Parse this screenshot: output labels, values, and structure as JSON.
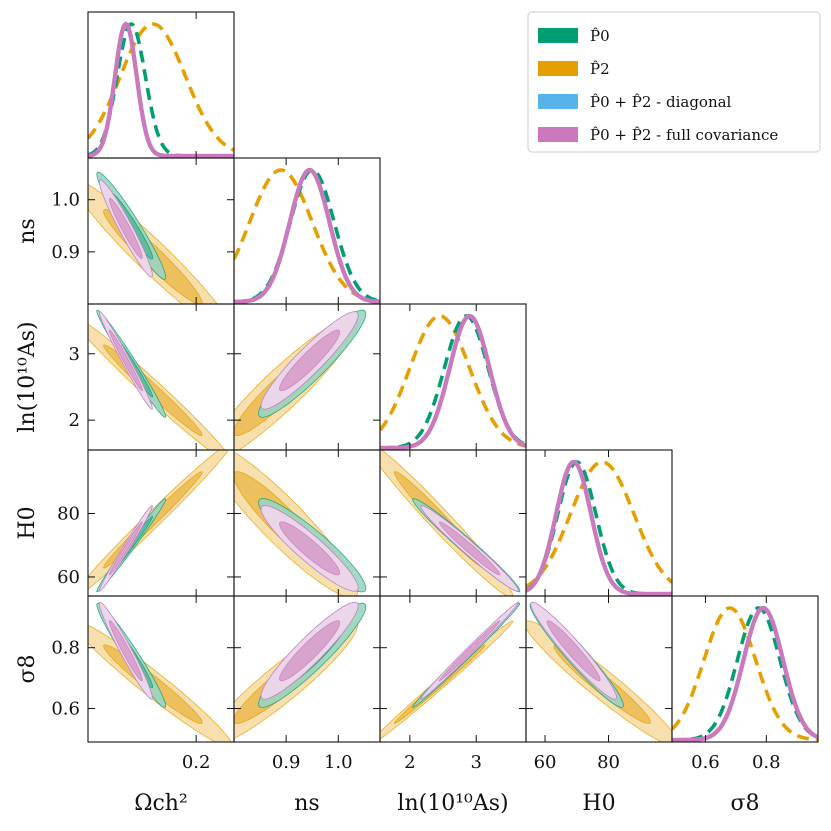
{
  "chart_data": {
    "type": "corner",
    "parameters": [
      {
        "id": "omch2",
        "label": "Ωch²",
        "range": [
          0.1,
          0.235
        ],
        "ticks": [
          0.2
        ],
        "tick_labels": [
          "0.2"
        ]
      },
      {
        "id": "ns",
        "label": "ns",
        "range": [
          0.8,
          1.08
        ],
        "ticks": [
          0.9,
          1.0
        ],
        "tick_labels": [
          "0.9",
          "1.0"
        ]
      },
      {
        "id": "lnAs",
        "label": "ln(10¹⁰As)",
        "range": [
          1.55,
          3.75
        ],
        "ticks": [
          2,
          3
        ],
        "tick_labels": [
          "2",
          "3"
        ]
      },
      {
        "id": "H0",
        "label": "H0",
        "range": [
          54,
          100
        ],
        "ticks": [
          60,
          80
        ],
        "tick_labels": [
          "60",
          "80"
        ]
      },
      {
        "id": "sigma8",
        "label": "σ8",
        "range": [
          0.49,
          0.97
        ],
        "ticks": [
          0.6,
          0.8
        ],
        "tick_labels": [
          "0.6",
          "0.8"
        ]
      }
    ],
    "series": [
      {
        "name": "P̂0",
        "color": "#029e73",
        "style": "dashed",
        "means": [
          0.14,
          0.95,
          2.85,
          70.0,
          0.775
        ],
        "sigmas": [
          0.013,
          0.042,
          0.33,
          6.0,
          0.07
        ]
      },
      {
        "name": "P̂2",
        "color": "#e69f00",
        "style": "dashed",
        "means": [
          0.16,
          0.89,
          2.45,
          78.0,
          0.68
        ],
        "sigmas": [
          0.03,
          0.06,
          0.45,
          10.0,
          0.085
        ]
      },
      {
        "name": "P̂0 + P̂2 - diagonal",
        "color": "#56b4e9",
        "style": "solid",
        "means": [
          0.135,
          0.945,
          2.9,
          69.0,
          0.79
        ],
        "sigmas": [
          0.01,
          0.038,
          0.3,
          5.5,
          0.065
        ]
      },
      {
        "name": "P̂0 + P̂2 - full covariance",
        "color": "#cc78bc",
        "style": "solid",
        "means": [
          0.135,
          0.945,
          2.9,
          69.0,
          0.79
        ],
        "sigmas": [
          0.01,
          0.038,
          0.3,
          5.5,
          0.065
        ]
      }
    ],
    "correlations": {
      "1,0": -0.96,
      "2,0": -0.985,
      "2,1": 0.93,
      "3,0": 0.99,
      "3,1": -0.92,
      "3,2": -0.98,
      "4,0": -0.97,
      "4,1": 0.93,
      "4,2": 0.995,
      "4,3": -0.96
    },
    "legend": {
      "position": "top-right"
    }
  }
}
